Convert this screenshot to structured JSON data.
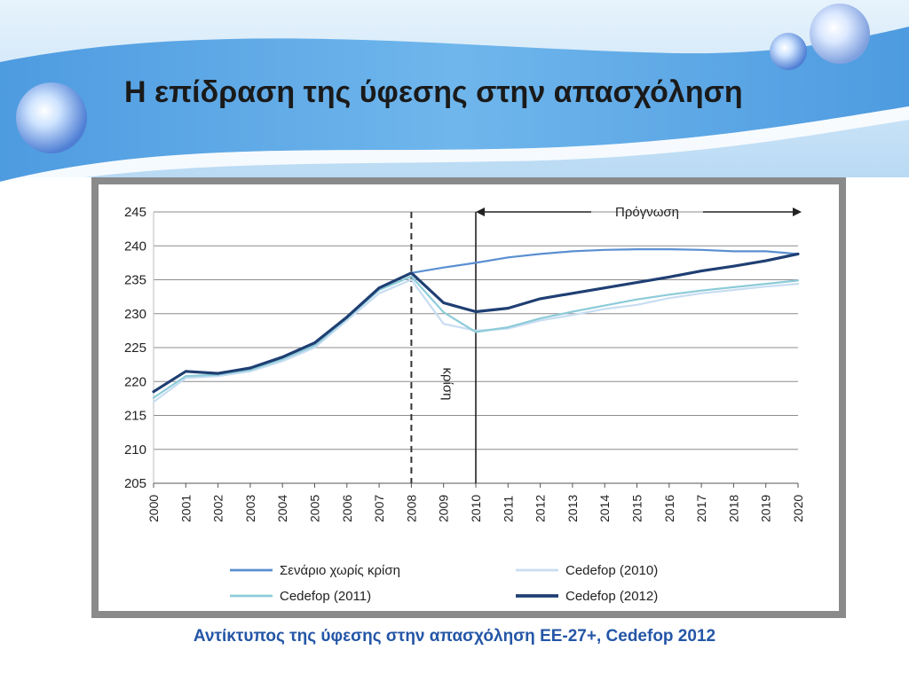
{
  "slide": {
    "title": "Η επίδραση της ύφεσης στην απασχόληση",
    "caption": "Αντίκτυπος της ύφεσης στην απασχόληση ΕΕ-27+, Cedefop 2012"
  },
  "colors": {
    "banner_blue": "#5aa8e6",
    "banner_light": "#cfe6f8",
    "caption_blue": "#2456a6",
    "frame_gray": "#8a8a8a"
  },
  "chart_data": {
    "type": "line",
    "x": [
      2000,
      2001,
      2002,
      2003,
      2004,
      2005,
      2006,
      2007,
      2008,
      2009,
      2010,
      2011,
      2012,
      2013,
      2014,
      2015,
      2016,
      2017,
      2018,
      2019,
      2020
    ],
    "ylim": [
      205,
      245
    ],
    "yticks": [
      205,
      210,
      215,
      220,
      225,
      230,
      235,
      240,
      245
    ],
    "grid": true,
    "legend_position": "bottom",
    "annotations": {
      "crisis_label": "κρίση",
      "crisis_year": 2008,
      "forecast_label": "Πρόγνωση",
      "forecast_start": 2010,
      "forecast_end": 2020
    },
    "series": [
      {
        "name": "Σενάριο χωρίς κρίση",
        "color": "#5b8fd1",
        "width": 2.2,
        "values": [
          null,
          null,
          null,
          null,
          null,
          null,
          null,
          null,
          236.0,
          236.8,
          237.5,
          238.3,
          238.8,
          239.2,
          239.4,
          239.5,
          239.5,
          239.4,
          239.2,
          239.2,
          238.8
        ]
      },
      {
        "name": "Cedefop (2010)",
        "color": "#c8ddf2",
        "width": 2.2,
        "values": [
          217.0,
          220.5,
          220.8,
          221.5,
          223.0,
          225.0,
          229.0,
          233.0,
          235.0,
          228.5,
          227.5,
          227.8,
          229.0,
          229.8,
          230.7,
          231.3,
          232.3,
          233.0,
          233.5,
          234.0,
          234.4
        ]
      },
      {
        "name": "Cedefop (2011)",
        "color": "#8ccbd8",
        "width": 2.2,
        "values": [
          217.6,
          220.8,
          221.0,
          221.7,
          223.3,
          225.3,
          229.3,
          233.5,
          235.5,
          230.2,
          227.3,
          228.0,
          229.3,
          230.3,
          231.2,
          232.1,
          232.8,
          233.4,
          233.9,
          234.4,
          234.9
        ]
      },
      {
        "name": "Cedefop (2012)",
        "color": "#1f3f73",
        "width": 3.2,
        "values": [
          218.5,
          221.5,
          221.2,
          222.0,
          223.6,
          225.7,
          229.5,
          233.8,
          236.0,
          231.6,
          230.3,
          230.8,
          232.2,
          233.0,
          233.8,
          234.6,
          235.4,
          236.3,
          237.0,
          237.8,
          238.8
        ]
      }
    ]
  }
}
